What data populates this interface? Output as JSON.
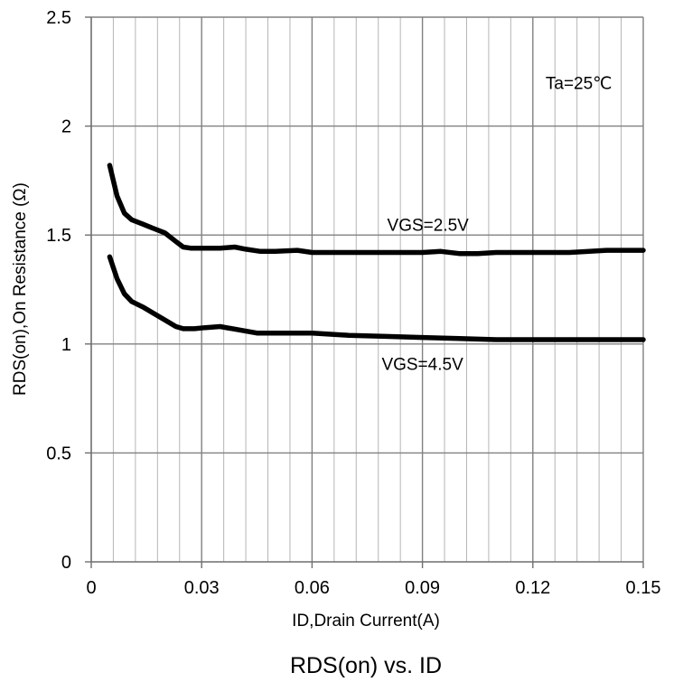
{
  "chart_data": {
    "type": "line",
    "title": "RDS(on) vs. ID",
    "xlabel": "ID,Drain Current(A)",
    "ylabel": "RDS(on),On Resistance (Ω)",
    "xlim": [
      0,
      0.15
    ],
    "ylim": [
      0,
      2.5
    ],
    "x_ticks": [
      0,
      0.03,
      0.06,
      0.09,
      0.12,
      0.15
    ],
    "x_tick_labels": [
      "0",
      "0.03",
      "0.06",
      "0.09",
      "0.12",
      "0.15"
    ],
    "x_minor_step": 0.006,
    "y_ticks": [
      0,
      0.5,
      1,
      1.5,
      2,
      2.5
    ],
    "y_tick_labels": [
      "0",
      "0.5",
      "1",
      "1.5",
      "2",
      "2.5"
    ],
    "grid": true,
    "annotations": [
      {
        "text": "Ta=25℃",
        "x": 0.1325,
        "y": 2.17
      },
      {
        "text": "VGS=2.5V",
        "x": 0.0915,
        "y": 1.52
      },
      {
        "text": "VGS=4.5V",
        "x": 0.09,
        "y": 0.88
      }
    ],
    "series": [
      {
        "label": "VGS=2.5V",
        "color": "#000000",
        "points": [
          [
            0.005,
            1.82
          ],
          [
            0.007,
            1.68
          ],
          [
            0.009,
            1.6
          ],
          [
            0.011,
            1.57
          ],
          [
            0.014,
            1.55
          ],
          [
            0.017,
            1.53
          ],
          [
            0.02,
            1.51
          ],
          [
            0.023,
            1.47
          ],
          [
            0.025,
            1.445
          ],
          [
            0.027,
            1.44
          ],
          [
            0.03,
            1.44
          ],
          [
            0.035,
            1.44
          ],
          [
            0.039,
            1.445
          ],
          [
            0.042,
            1.435
          ],
          [
            0.046,
            1.425
          ],
          [
            0.05,
            1.425
          ],
          [
            0.056,
            1.43
          ],
          [
            0.06,
            1.42
          ],
          [
            0.07,
            1.42
          ],
          [
            0.075,
            1.42
          ],
          [
            0.08,
            1.42
          ],
          [
            0.09,
            1.42
          ],
          [
            0.095,
            1.425
          ],
          [
            0.1,
            1.415
          ],
          [
            0.105,
            1.415
          ],
          [
            0.11,
            1.42
          ],
          [
            0.12,
            1.42
          ],
          [
            0.13,
            1.42
          ],
          [
            0.14,
            1.43
          ],
          [
            0.15,
            1.43
          ]
        ]
      },
      {
        "label": "VGS=4.5V",
        "color": "#000000",
        "points": [
          [
            0.005,
            1.4
          ],
          [
            0.007,
            1.3
          ],
          [
            0.009,
            1.23
          ],
          [
            0.011,
            1.195
          ],
          [
            0.014,
            1.17
          ],
          [
            0.017,
            1.14
          ],
          [
            0.02,
            1.11
          ],
          [
            0.023,
            1.08
          ],
          [
            0.025,
            1.07
          ],
          [
            0.028,
            1.07
          ],
          [
            0.031,
            1.075
          ],
          [
            0.035,
            1.08
          ],
          [
            0.04,
            1.065
          ],
          [
            0.045,
            1.05
          ],
          [
            0.05,
            1.05
          ],
          [
            0.06,
            1.05
          ],
          [
            0.07,
            1.04
          ],
          [
            0.08,
            1.035
          ],
          [
            0.09,
            1.03
          ],
          [
            0.1,
            1.025
          ],
          [
            0.11,
            1.02
          ],
          [
            0.12,
            1.02
          ],
          [
            0.13,
            1.02
          ],
          [
            0.14,
            1.02
          ],
          [
            0.15,
            1.02
          ]
        ]
      }
    ]
  }
}
